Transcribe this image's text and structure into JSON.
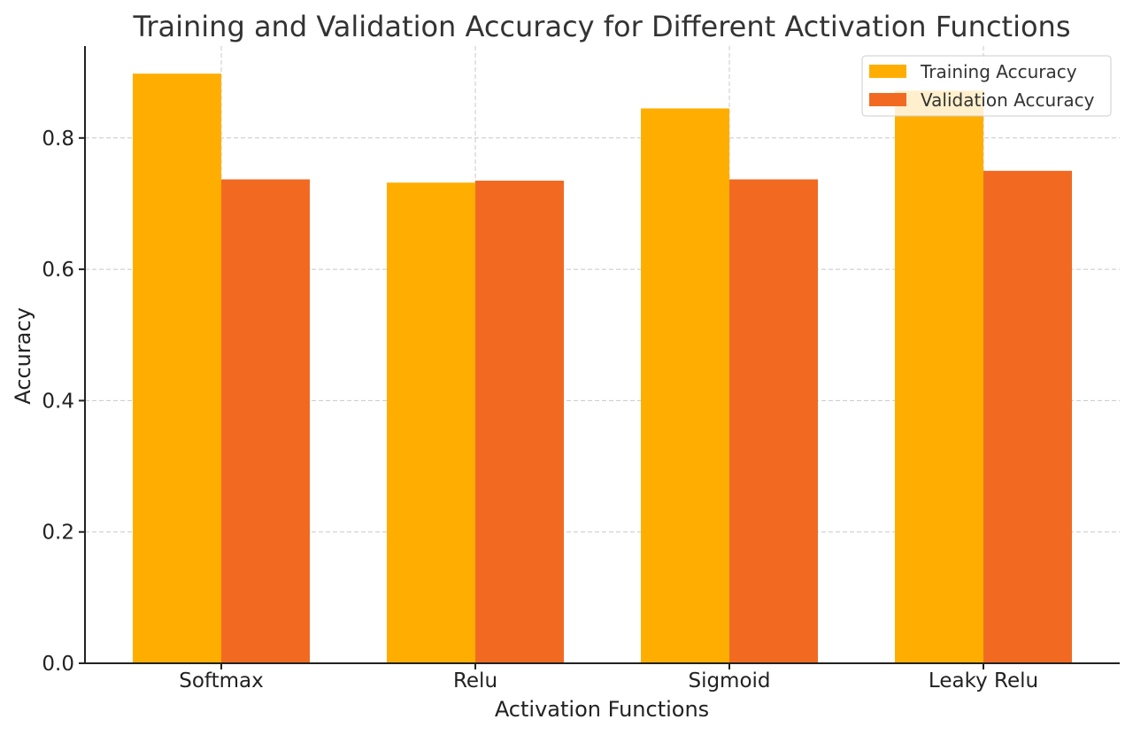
{
  "chart_data": {
    "type": "bar",
    "title": "Training and Validation Accuracy for Different Activation Functions",
    "xlabel": "Activation Functions",
    "ylabel": "Accuracy",
    "categories": [
      "Softmax",
      "Relu",
      "Sigmoid",
      "Leaky Relu"
    ],
    "series": [
      {
        "name": "Training Accuracy",
        "color": "#FFAE00",
        "values": [
          0.898,
          0.732,
          0.845,
          0.872
        ]
      },
      {
        "name": "Validation Accuracy",
        "color": "#F26A22",
        "values": [
          0.737,
          0.735,
          0.737,
          0.75
        ]
      }
    ],
    "ylim": [
      0,
      0.94
    ],
    "yticks": [
      0.0,
      0.2,
      0.4,
      0.6,
      0.8
    ],
    "ytick_labels": [
      "0.0",
      "0.2",
      "0.4",
      "0.6",
      "0.8"
    ],
    "grid": true,
    "legend_position": "top-right"
  }
}
